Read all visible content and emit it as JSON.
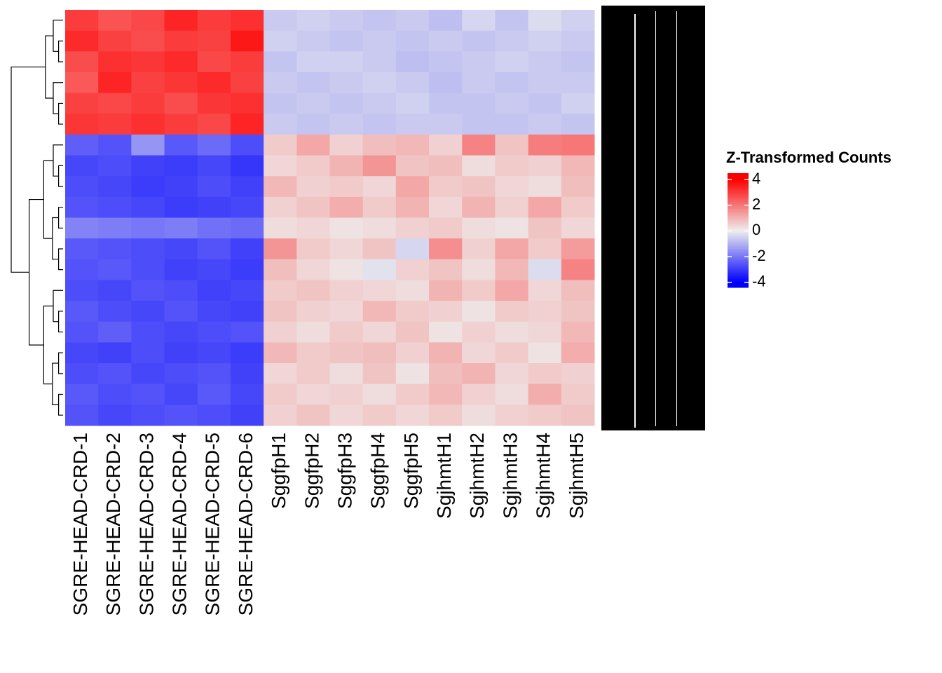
{
  "chart_data": {
    "type": "heatmap",
    "legend_title": "Z-Transformed Counts",
    "x": [
      "SGRE-HEAD-CRD-1",
      "SGRE-HEAD-CRD-2",
      "SGRE-HEAD-CRD-3",
      "SGRE-HEAD-CRD-4",
      "SGRE-HEAD-CRD-5",
      "SGRE-HEAD-CRD-6",
      "SggfpH1",
      "SggfpH2",
      "SggfpH3",
      "SggfpH4",
      "SggfpH5",
      "SgjhmtH1",
      "SgjhmtH2",
      "SgjhmtH3",
      "SgjhmtH4",
      "SgjhmtH5"
    ],
    "values": [
      [
        3.0,
        2.6,
        2.8,
        3.4,
        3.0,
        3.2,
        -0.6,
        -0.5,
        -0.6,
        -0.7,
        -0.6,
        -0.8,
        -0.4,
        -0.7,
        -0.3,
        -0.5
      ],
      [
        3.3,
        2.9,
        2.7,
        3.0,
        2.9,
        3.6,
        -0.5,
        -0.6,
        -0.7,
        -0.6,
        -0.7,
        -0.6,
        -0.7,
        -0.6,
        -0.5,
        -0.6
      ],
      [
        2.7,
        3.2,
        3.1,
        3.3,
        2.8,
        3.0,
        -0.7,
        -0.5,
        -0.5,
        -0.6,
        -0.8,
        -0.7,
        -0.6,
        -0.5,
        -0.6,
        -0.7
      ],
      [
        2.5,
        3.4,
        2.9,
        3.1,
        3.3,
        2.9,
        -0.6,
        -0.7,
        -0.6,
        -0.5,
        -0.6,
        -0.8,
        -0.6,
        -0.7,
        -0.6,
        -0.6
      ],
      [
        2.9,
        2.8,
        3.0,
        2.7,
        3.1,
        3.2,
        -0.7,
        -0.6,
        -0.7,
        -0.6,
        -0.5,
        -0.7,
        -0.7,
        -0.6,
        -0.7,
        -0.5
      ],
      [
        3.1,
        3.0,
        3.2,
        3.0,
        2.8,
        3.4,
        -0.6,
        -0.7,
        -0.6,
        -0.7,
        -0.6,
        -0.6,
        -0.7,
        -0.7,
        -0.6,
        -0.7
      ],
      [
        -2.4,
        -2.6,
        -1.5,
        -2.5,
        -2.2,
        -2.7,
        0.6,
        1.2,
        0.5,
        0.8,
        0.9,
        0.5,
        1.8,
        0.7,
        1.9,
        2.0
      ],
      [
        -2.8,
        -2.7,
        -2.9,
        -3.0,
        -2.8,
        -3.1,
        0.4,
        0.6,
        1.0,
        1.5,
        0.7,
        0.8,
        0.3,
        0.6,
        0.5,
        0.9
      ],
      [
        -2.7,
        -2.8,
        -3.0,
        -2.9,
        -2.7,
        -2.9,
        0.9,
        0.5,
        0.6,
        0.4,
        1.2,
        0.6,
        0.7,
        0.4,
        0.3,
        0.8
      ],
      [
        -2.6,
        -2.7,
        -2.8,
        -3.0,
        -2.9,
        -2.8,
        0.5,
        0.7,
        1.1,
        0.6,
        1.0,
        0.4,
        1.0,
        0.5,
        1.2,
        0.6
      ],
      [
        -1.8,
        -1.9,
        -2.0,
        -1.9,
        -2.1,
        -2.2,
        0.3,
        0.4,
        0.2,
        0.3,
        0.5,
        0.6,
        0.3,
        0.2,
        0.7,
        0.4
      ],
      [
        -2.5,
        -2.6,
        -2.7,
        -2.8,
        -2.6,
        -2.9,
        1.5,
        0.6,
        0.4,
        0.7,
        -0.4,
        1.6,
        0.5,
        1.2,
        0.6,
        1.4
      ],
      [
        -2.6,
        -2.5,
        -2.7,
        -2.9,
        -2.8,
        -3.0,
        0.8,
        0.4,
        0.2,
        -0.2,
        0.5,
        0.7,
        0.3,
        0.9,
        -0.3,
        1.8
      ],
      [
        -2.7,
        -2.8,
        -2.6,
        -2.7,
        -2.9,
        -2.8,
        0.6,
        0.7,
        0.5,
        0.4,
        0.3,
        1.0,
        0.6,
        1.2,
        0.4,
        0.8
      ],
      [
        -2.5,
        -2.7,
        -2.8,
        -2.6,
        -2.8,
        -2.9,
        0.7,
        0.5,
        0.4,
        0.9,
        0.6,
        0.5,
        0.2,
        0.6,
        0.5,
        0.7
      ],
      [
        -2.6,
        -2.4,
        -2.7,
        -2.8,
        -2.7,
        -2.6,
        0.5,
        0.3,
        0.6,
        0.4,
        0.7,
        0.2,
        0.5,
        0.3,
        0.4,
        0.9
      ],
      [
        -2.8,
        -2.9,
        -2.7,
        -2.9,
        -2.8,
        -3.0,
        0.9,
        0.6,
        0.7,
        0.8,
        0.5,
        1.0,
        0.4,
        0.6,
        0.2,
        1.1
      ],
      [
        -2.7,
        -2.6,
        -2.8,
        -2.7,
        -2.6,
        -2.9,
        0.4,
        0.6,
        0.3,
        0.7,
        0.2,
        0.8,
        1.0,
        0.4,
        0.6,
        0.5
      ],
      [
        -2.5,
        -2.7,
        -2.6,
        -2.8,
        -2.5,
        -2.8,
        0.6,
        0.4,
        0.5,
        0.3,
        0.6,
        0.9,
        0.5,
        0.3,
        1.1,
        0.6
      ],
      [
        -2.6,
        -2.8,
        -2.7,
        -2.6,
        -2.7,
        -2.9,
        0.5,
        0.7,
        0.4,
        0.6,
        0.4,
        0.6,
        0.3,
        0.5,
        0.6,
        0.7
      ]
    ],
    "zlim": [
      -4.4,
      4.5
    ],
    "colorbar_ticks": [
      4,
      2,
      0,
      -2,
      -4
    ],
    "colors": {
      "low": "#0000ff",
      "mid": "#eeeeee",
      "high": "#ff0000"
    }
  }
}
